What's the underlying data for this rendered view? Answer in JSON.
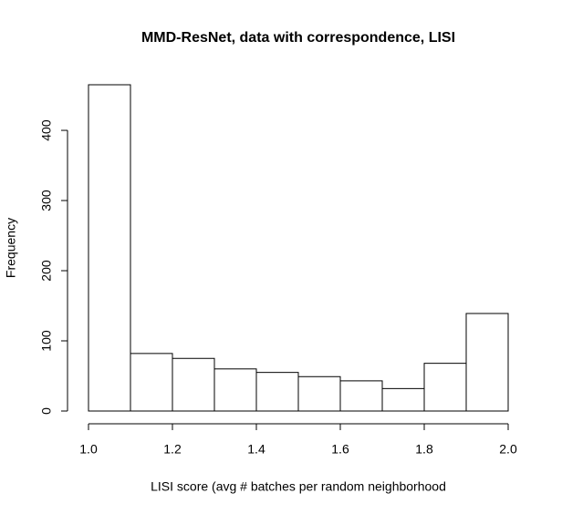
{
  "chart_data": {
    "type": "histogram",
    "title": "MMD-ResNet, data with correspondence, LISI",
    "x_label": "LISI score (avg # batches per random neighborhood",
    "y_label": "Frequency",
    "bins": [
      1.0,
      1.1,
      1.2,
      1.3,
      1.4,
      1.5,
      1.6,
      1.7,
      1.8,
      1.9,
      2.0
    ],
    "values": [
      465,
      82,
      75,
      60,
      55,
      49,
      43,
      32,
      68,
      139
    ],
    "color": "#ffffff",
    "xlim": [
      1.0,
      2.0
    ],
    "xticks": [
      {
        "value": 1,
        "label": "1.0"
      },
      1.2,
      1.4,
      1.6,
      1.8,
      {
        "value": 2,
        "label": "2.0"
      }
    ],
    "ylim": [
      0,
      465
    ],
    "yticks": [
      0,
      100,
      200,
      300,
      400
    ]
  }
}
